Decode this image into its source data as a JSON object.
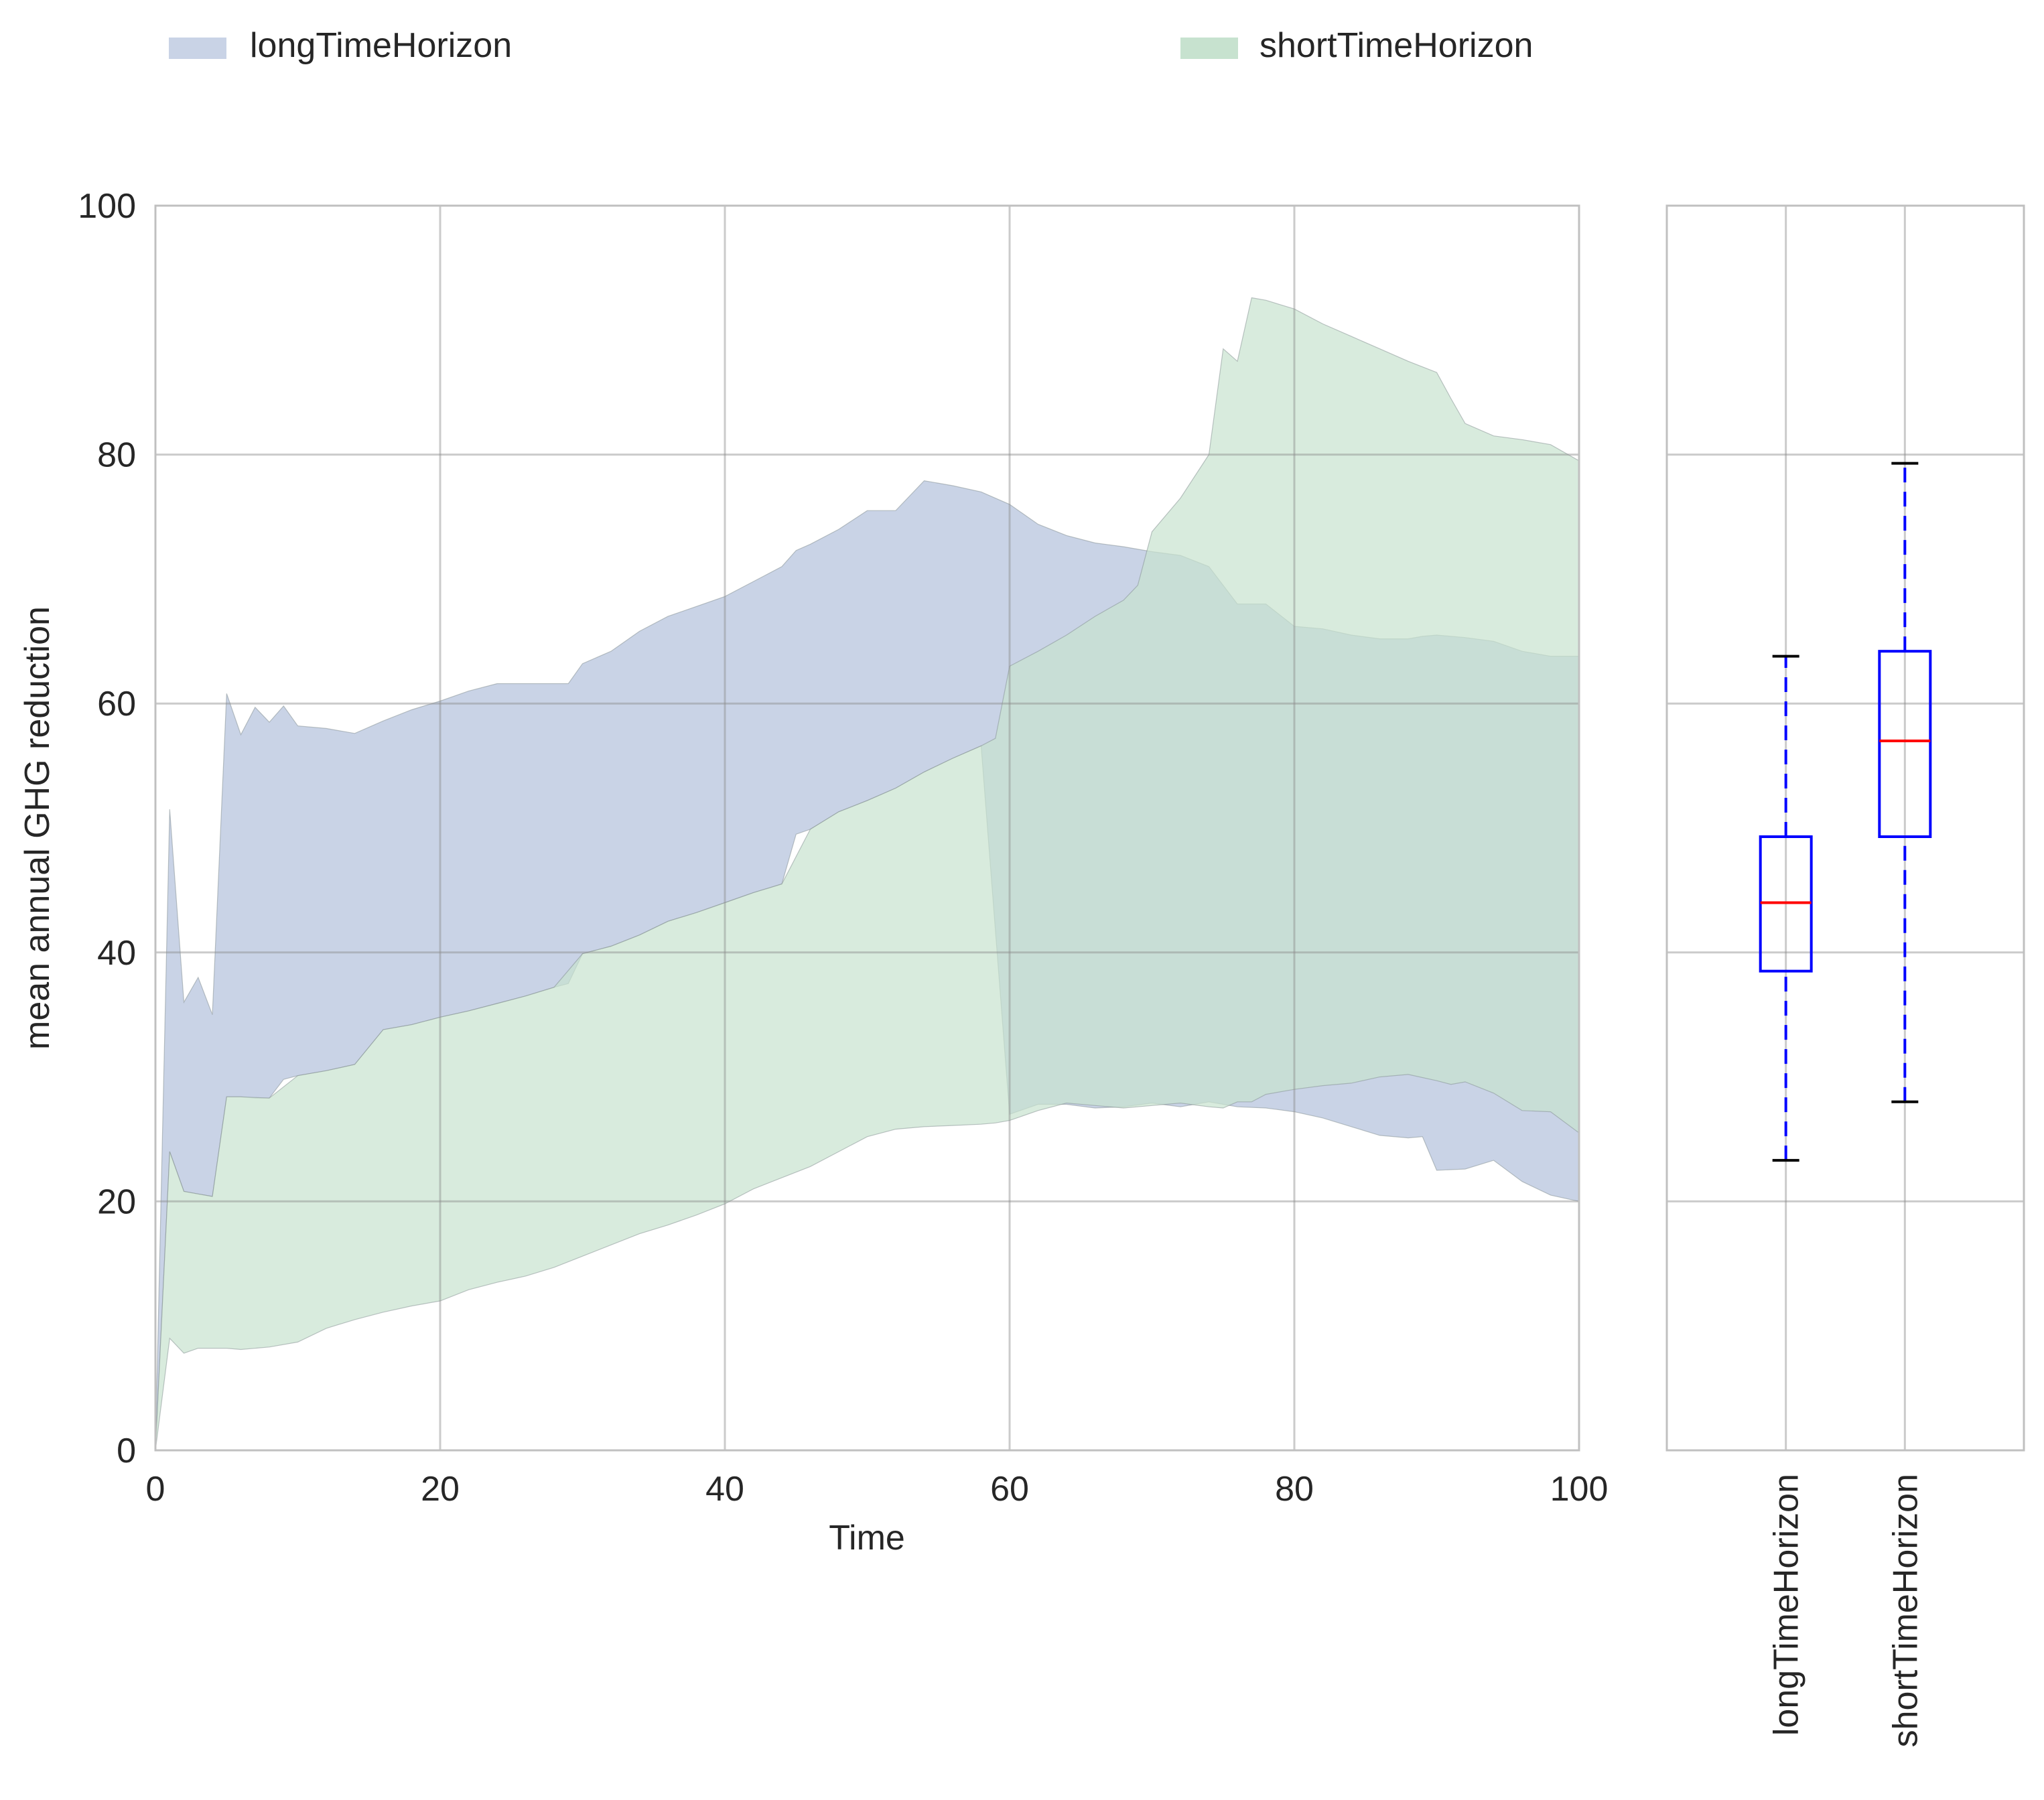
{
  "chart_data": [
    {
      "type": "area",
      "subtype": "envelope",
      "xlabel": "Time",
      "ylabel": "mean annual GHG reduction",
      "xlim": [
        0,
        100
      ],
      "ylim": [
        0,
        100
      ],
      "xticks": [
        0,
        20,
        40,
        60,
        80,
        100
      ],
      "yticks": [
        0,
        20,
        40,
        60,
        80,
        100
      ],
      "grid": true,
      "legend": {
        "position": "top",
        "entries": [
          "longTimeHorizon",
          "shortTimeHorizon"
        ]
      },
      "series": [
        {
          "name": "longTimeHorizon",
          "color": "#c9d3e6",
          "x": [
            0,
            1,
            2,
            3,
            4,
            5,
            6,
            7,
            8,
            9,
            10,
            12,
            14,
            16,
            18,
            20,
            22,
            24,
            26,
            28,
            29,
            30,
            32,
            34,
            36,
            38,
            40,
            42,
            44,
            45,
            46,
            48,
            50,
            52,
            54,
            56,
            58,
            60,
            62,
            64,
            66,
            68,
            70,
            72,
            74,
            76,
            78,
            80,
            82,
            84,
            86,
            88,
            89,
            90,
            92,
            94,
            96,
            98,
            100
          ],
          "upper": [
            0,
            51.5,
            36,
            38,
            35,
            60.8,
            57.5,
            59.7,
            58.5,
            59.8,
            58.2,
            58,
            57.6,
            58.6,
            59.5,
            60.2,
            61.0,
            61.6,
            61.6,
            61.6,
            61.6,
            63.2,
            64.2,
            65.8,
            67,
            67.8,
            68.6,
            69.8,
            71,
            72.3,
            72.8,
            74,
            75.5,
            75.5,
            77.9,
            77.5,
            77,
            76,
            74.4,
            73.5,
            72.9,
            72.6,
            72.2,
            71.9,
            71,
            68,
            68,
            66.2,
            66,
            65.5,
            65.2,
            65.2,
            65.4,
            65.5,
            65.3,
            65,
            64.2,
            63.8,
            63.8
          ],
          "lower": [
            0,
            24,
            20.8,
            20.6,
            20.4,
            28.4,
            28.4,
            28.3,
            28.3,
            29.8,
            30.1,
            30.5,
            31,
            33.8,
            34.2,
            34.8,
            35.3,
            35.9,
            36.5,
            37.2,
            37.5,
            39.9,
            40.5,
            41.4,
            42.5,
            43.2,
            44,
            44.8,
            45.5,
            49.5,
            49.9,
            51.3,
            52.2,
            53.2,
            54.5,
            55.6,
            56.6,
            27,
            27.8,
            27.8,
            27.5,
            27.6,
            27.9,
            27.6,
            28,
            27.6,
            27.5,
            27.2,
            26.7,
            26,
            25.3,
            25.1,
            25.2,
            22.5,
            22.6,
            23.3,
            21.6,
            20.5,
            20
          ]
        },
        {
          "name": "shortTimeHorizon",
          "color": "#c7e2cf",
          "x": [
            0,
            1,
            2,
            3,
            4,
            5,
            6,
            8,
            10,
            12,
            14,
            16,
            18,
            20,
            22,
            24,
            26,
            28,
            30,
            32,
            34,
            36,
            38,
            40,
            42,
            44,
            46,
            48,
            50,
            52,
            54,
            56,
            58,
            59,
            60,
            62,
            64,
            66,
            68,
            69,
            70,
            72,
            74,
            75,
            76,
            77,
            78,
            80,
            82,
            84,
            86,
            88,
            90,
            91,
            92,
            94,
            96,
            98,
            100
          ],
          "upper": [
            0,
            24,
            20.8,
            20.6,
            20.4,
            28.4,
            28.4,
            28.3,
            30.1,
            30.5,
            31,
            33.8,
            34.2,
            34.8,
            35.3,
            35.9,
            36.5,
            37.2,
            39.9,
            40.5,
            41.4,
            42.5,
            43.2,
            44,
            44.8,
            45.5,
            49.9,
            51.3,
            52.2,
            53.2,
            54.5,
            55.6,
            56.6,
            57.2,
            63,
            64.2,
            65.5,
            67,
            68.3,
            69.5,
            73.8,
            76.5,
            80,
            88.5,
            87.5,
            92.6,
            92.4,
            91.7,
            90.5,
            89.5,
            88.5,
            87.5,
            86.6,
            84.5,
            82.5,
            81.5,
            81.2,
            80.8,
            79.5
          ],
          "lower": [
            0,
            9,
            7.8,
            8.2,
            8.2,
            8.2,
            8.1,
            8.3,
            8.7,
            9.8,
            10.5,
            11.1,
            11.6,
            12,
            12.9,
            13.5,
            14,
            14.7,
            15.6,
            16.5,
            17.4,
            18.1,
            18.9,
            19.8,
            21,
            21.9,
            22.8,
            24,
            25.2,
            25.8,
            26,
            26.1,
            26.2,
            26.3,
            26.5,
            27.3,
            27.9,
            27.7,
            27.5,
            27.6,
            27.7,
            27.9,
            27.6,
            27.5,
            28,
            28,
            28.6,
            29,
            29.3,
            29.5,
            30,
            30.2,
            29.7,
            29.4,
            29.6,
            28.7,
            27.3,
            27.2,
            25.5
          ]
        }
      ]
    },
    {
      "type": "box",
      "ylim": [
        0,
        100
      ],
      "yticks": [
        0,
        20,
        40,
        60,
        80,
        100
      ],
      "grid": true,
      "categories": [
        "longTimeHorizon",
        "shortTimeHorizon"
      ],
      "boxes": [
        {
          "name": "longTimeHorizon",
          "whisker_low": 23.3,
          "q1": 38.5,
          "median": 44.0,
          "q3": 49.3,
          "whisker_high": 63.8
        },
        {
          "name": "shortTimeHorizon",
          "whisker_low": 28.0,
          "q1": 49.3,
          "median": 57.0,
          "q3": 64.2,
          "whisker_high": 79.3
        }
      ],
      "colors": {
        "box": "#0000ff",
        "median": "#ff0000",
        "cap": "#000000"
      }
    }
  ]
}
